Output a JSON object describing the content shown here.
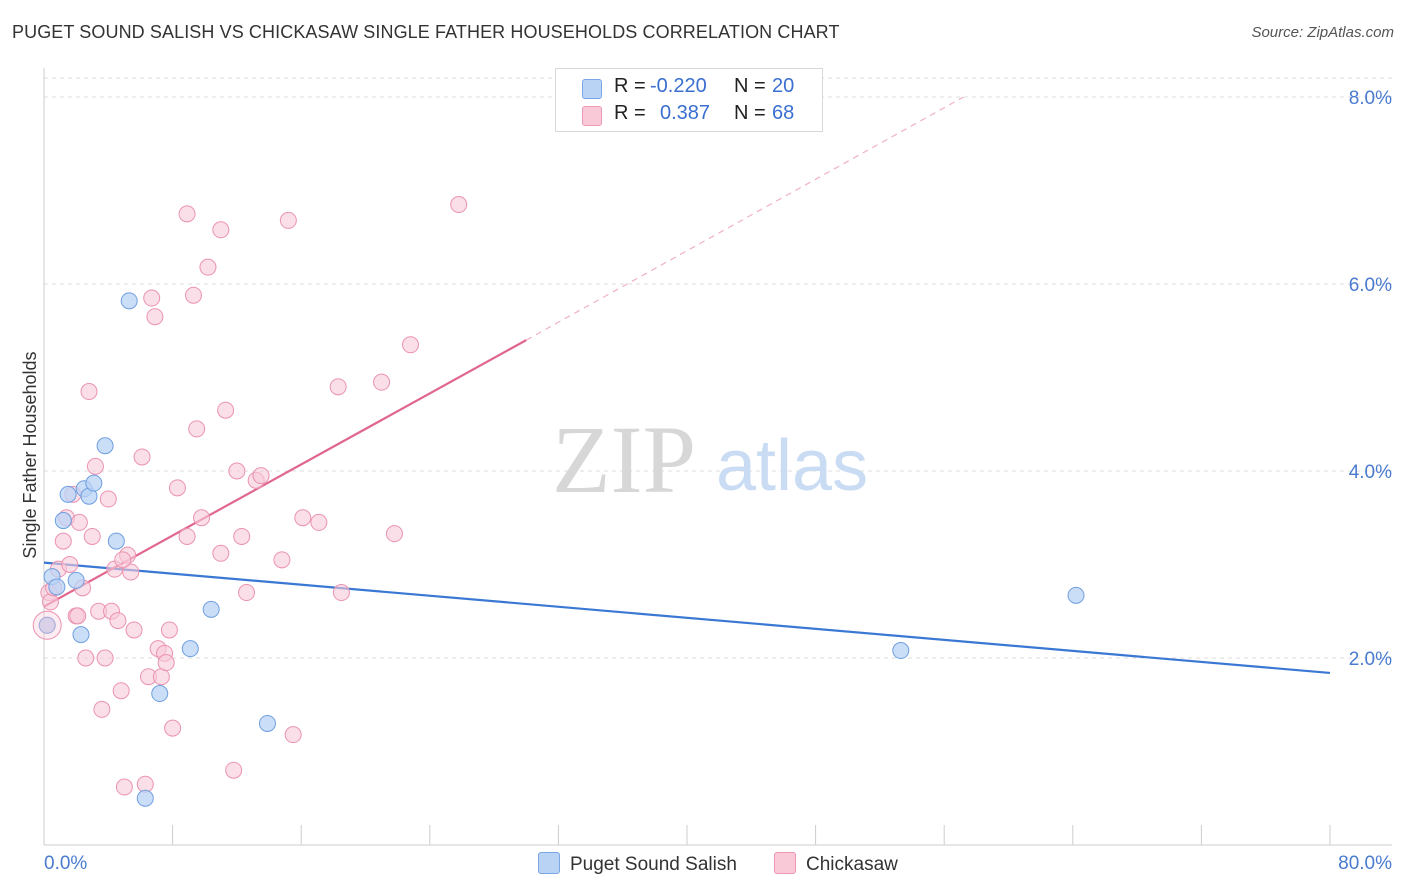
{
  "title": "PUGET SOUND SALISH VS CHICKASAW SINGLE FATHER HOUSEHOLDS CORRELATION CHART",
  "source": "Source: ZipAtlas.com",
  "watermark": {
    "zip": "ZIP",
    "atlas": "atlas"
  },
  "stats": {
    "r_label": "R =",
    "n_label": "N =",
    "rows": [
      {
        "r": "-0.220",
        "n": "20",
        "fill": "#b9d3f5",
        "stroke": "#7aa5e6"
      },
      {
        "r": "0.387",
        "n": "68",
        "fill": "#f9c9d8",
        "stroke": "#ee98b3"
      }
    ]
  },
  "legend": {
    "items": [
      "Puget Sound Salish",
      "Chickasaw"
    ]
  },
  "chart_data": {
    "type": "scatter",
    "title": "PUGET SOUND SALISH VS CHICKASAW SINGLE FATHER HOUSEHOLDS CORRELATION CHART",
    "ylabel": "Single Father Households",
    "xlabel": "",
    "xlim": [
      0,
      80
    ],
    "ylim": [
      0,
      8.4
    ],
    "x_tick_labels": [
      "0.0%",
      "80.0%"
    ],
    "y_ticks": [
      2,
      4,
      6,
      8
    ],
    "y_tick_labels": [
      "2.0%",
      "4.0%",
      "6.0%",
      "8.0%"
    ],
    "grid": true,
    "colors": {
      "salish": "#3a78d4",
      "chickasaw": "#e0668f"
    },
    "series": [
      {
        "name": "Puget Sound Salish",
        "color": "#3a78d4",
        "points": [
          [
            0.2,
            2.35
          ],
          [
            0.5,
            2.87
          ],
          [
            0.8,
            2.76
          ],
          [
            1.2,
            3.47
          ],
          [
            1.5,
            3.75
          ],
          [
            2.0,
            2.83
          ],
          [
            2.3,
            2.25
          ],
          [
            2.5,
            3.81
          ],
          [
            2.8,
            3.73
          ],
          [
            3.1,
            3.87
          ],
          [
            3.8,
            4.27
          ],
          [
            4.5,
            3.25
          ],
          [
            5.3,
            5.82
          ],
          [
            7.2,
            1.62
          ],
          [
            6.3,
            0.5
          ],
          [
            9.1,
            2.1
          ],
          [
            10.4,
            2.52
          ],
          [
            13.9,
            1.3
          ],
          [
            53.3,
            2.08
          ],
          [
            64.2,
            2.67
          ]
        ],
        "trend": {
          "x": [
            0,
            80
          ],
          "y": [
            3.02,
            1.84
          ]
        }
      },
      {
        "name": "Chickasaw",
        "color": "#e0668f",
        "points": [
          [
            0.2,
            2.35
          ],
          [
            0.3,
            2.7
          ],
          [
            0.4,
            2.6
          ],
          [
            0.6,
            2.75
          ],
          [
            0.9,
            2.95
          ],
          [
            1.2,
            3.25
          ],
          [
            1.4,
            3.5
          ],
          [
            1.6,
            3.0
          ],
          [
            1.8,
            3.75
          ],
          [
            2.0,
            2.45
          ],
          [
            2.2,
            3.45
          ],
          [
            2.4,
            2.75
          ],
          [
            2.6,
            2.0
          ],
          [
            2.8,
            4.85
          ],
          [
            3.0,
            3.3
          ],
          [
            3.2,
            4.05
          ],
          [
            3.4,
            2.5
          ],
          [
            3.6,
            1.45
          ],
          [
            3.8,
            2.0
          ],
          [
            4.0,
            3.7
          ],
          [
            4.2,
            2.5
          ],
          [
            4.4,
            2.95
          ],
          [
            4.6,
            2.4
          ],
          [
            4.8,
            1.65
          ],
          [
            5.0,
            0.62
          ],
          [
            5.2,
            3.1
          ],
          [
            5.4,
            2.92
          ],
          [
            5.6,
            2.3
          ],
          [
            6.1,
            4.15
          ],
          [
            6.3,
            0.65
          ],
          [
            6.5,
            1.8
          ],
          [
            6.7,
            5.85
          ],
          [
            6.9,
            5.65
          ],
          [
            7.1,
            2.1
          ],
          [
            7.3,
            1.8
          ],
          [
            7.5,
            2.05
          ],
          [
            7.6,
            1.95
          ],
          [
            7.8,
            2.3
          ],
          [
            8.0,
            1.25
          ],
          [
            8.3,
            3.82
          ],
          [
            8.9,
            3.3
          ],
          [
            8.9,
            6.75
          ],
          [
            9.3,
            5.88
          ],
          [
            9.5,
            4.45
          ],
          [
            9.8,
            3.5
          ],
          [
            10.2,
            6.18
          ],
          [
            11.0,
            3.12
          ],
          [
            11.0,
            6.58
          ],
          [
            11.3,
            4.65
          ],
          [
            11.8,
            0.8
          ],
          [
            12.0,
            4.0
          ],
          [
            12.3,
            3.3
          ],
          [
            12.6,
            2.7
          ],
          [
            13.2,
            3.9
          ],
          [
            13.5,
            3.95
          ],
          [
            14.8,
            3.05
          ],
          [
            15.2,
            6.68
          ],
          [
            15.5,
            1.18
          ],
          [
            16.1,
            3.5
          ],
          [
            17.1,
            3.45
          ],
          [
            18.3,
            4.9
          ],
          [
            18.5,
            2.7
          ],
          [
            21.0,
            4.95
          ],
          [
            21.8,
            3.33
          ],
          [
            22.8,
            5.35
          ],
          [
            25.8,
            6.85
          ],
          [
            2.1,
            2.45
          ],
          [
            4.9,
            3.05
          ]
        ],
        "trend": {
          "x": [
            0,
            30
          ],
          "y": [
            2.55,
            5.4
          ]
        },
        "trend_extension": {
          "x": [
            30,
            57.2
          ],
          "y": [
            5.4,
            8.0
          ]
        }
      }
    ]
  }
}
